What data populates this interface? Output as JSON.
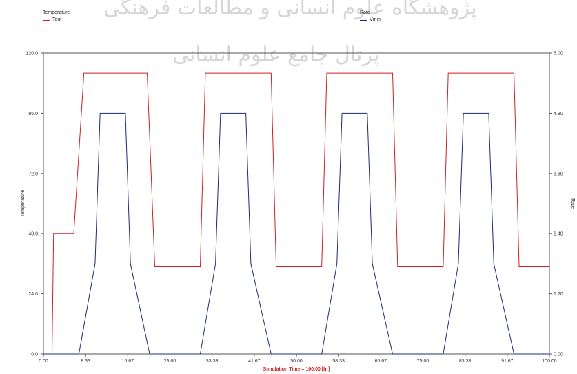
{
  "watermark": {
    "line1": "پژوهشگاه علوم انسانی و مطالعات فرهنگی",
    "line2": "پرتال جامع علوم انسانی"
  },
  "chart_data": {
    "type": "line",
    "xlabel": "Simulation Time = 100.00 [hr]",
    "ylabel": "Temperature",
    "y2label": "Rate",
    "xlim": [
      0,
      100
    ],
    "ylim": [
      0,
      120
    ],
    "y2lim": [
      0,
      6
    ],
    "x_ticks": [
      "0.00",
      "8.33",
      "16.67",
      "25.00",
      "33.33",
      "41.67",
      "50.00",
      "58.33",
      "66.67",
      "75.00",
      "83.33",
      "91.67",
      "100.00"
    ],
    "y_ticks": [
      "0.0",
      "24.0",
      "48.0",
      "72.0",
      "96.0",
      "120.0"
    ],
    "y2_ticks": [
      "0.00",
      "1.20",
      "2.40",
      "3.60",
      "4.80",
      "6.00"
    ],
    "legends": [
      {
        "title": "Temperature",
        "entry": "Tout",
        "color": "#d02020"
      },
      {
        "title": "Rate",
        "entry": "Vmin",
        "color": "#1c2c78"
      }
    ],
    "series": [
      {
        "name": "Tout",
        "axis": "left",
        "color": "#d02020",
        "x": [
          0,
          1.7,
          2.0,
          6.0,
          8.0,
          20.5,
          22.0,
          31.0,
          32.0,
          45.0,
          46.0,
          55.0,
          56.0,
          69.0,
          70.0,
          79.0,
          80.0,
          93.0,
          94.0,
          100.0
        ],
        "y": [
          0,
          0,
          48,
          48,
          112,
          112,
          35,
          35,
          112,
          112,
          35,
          35,
          112,
          112,
          35,
          35,
          112,
          112,
          35,
          35
        ]
      },
      {
        "name": "Vmin",
        "axis": "right",
        "color": "#1c2c78",
        "x": [
          0,
          7.0,
          10.2,
          11.2,
          16.2,
          17.2,
          21.0,
          31.0,
          34.0,
          35.0,
          40.0,
          41.0,
          45.0,
          55.0,
          58.0,
          59.0,
          64.0,
          65.0,
          69.0,
          79.0,
          82.0,
          83.0,
          88.0,
          89.0,
          93.0,
          100.0
        ],
        "y": [
          0,
          0,
          1.8,
          4.8,
          4.8,
          1.8,
          0,
          0,
          1.8,
          4.8,
          4.8,
          1.8,
          0,
          0,
          1.8,
          4.8,
          4.8,
          1.8,
          0,
          0,
          1.8,
          4.8,
          4.8,
          1.8,
          0,
          0
        ]
      }
    ],
    "grid": false
  }
}
